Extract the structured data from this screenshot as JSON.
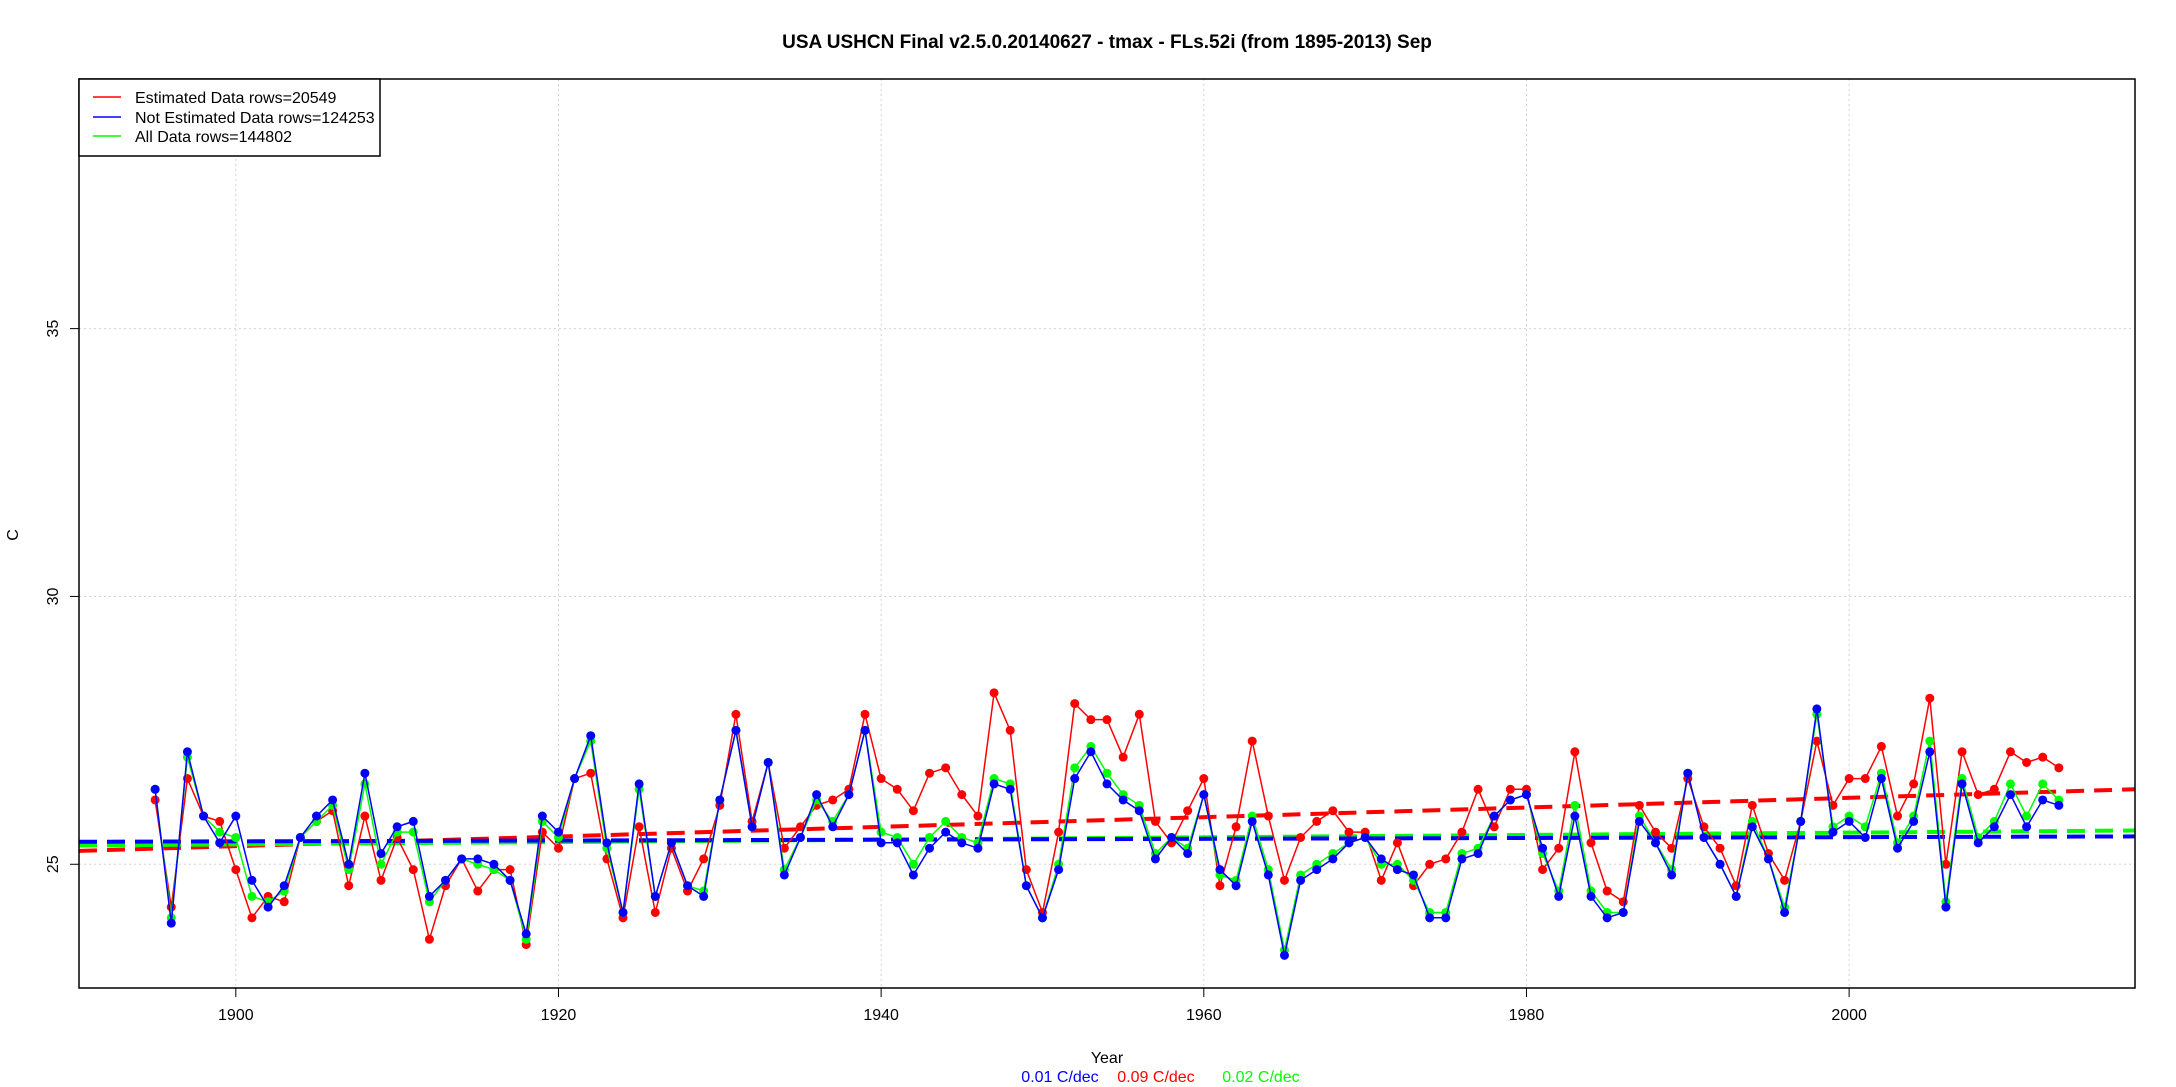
{
  "chart_data": {
    "type": "line",
    "title": "USA USHCN Final v2.5.0.20140627 - tmax - FLs.52i (from 1895-2013) Sep",
    "xlabel": "Year",
    "ylabel": "C",
    "xlim": [
      1890.28,
      2017.72
    ],
    "ylim": [
      22.69,
      39.66
    ],
    "x_ticks": [
      1900,
      1920,
      1940,
      1960,
      1980,
      2000
    ],
    "y_ticks": [
      25,
      30,
      35
    ],
    "grid": true,
    "legend_placement": "top-left",
    "x_start": 1895,
    "x_end": 2013,
    "series": [
      {
        "name": "Estimated Data rows=20549",
        "color": "#ff0000",
        "values": [
          26.2,
          24.2,
          26.6,
          25.9,
          25.8,
          24.9,
          24.0,
          24.4,
          24.3,
          25.5,
          25.8,
          26.0,
          24.6,
          25.9,
          24.7,
          25.5,
          24.9,
          23.6,
          24.6,
          25.1,
          24.5,
          24.9,
          24.9,
          23.5,
          25.6,
          25.3,
          26.6,
          26.7,
          25.1,
          24.0,
          25.7,
          24.1,
          25.3,
          24.5,
          25.1,
          26.1,
          27.8,
          25.8,
          26.9,
          25.3,
          25.7,
          26.1,
          26.2,
          26.4,
          27.8,
          26.6,
          26.4,
          26.0,
          26.7,
          26.8,
          26.3,
          25.9,
          28.2,
          27.5,
          24.9,
          24.1,
          25.6,
          28.0,
          27.7,
          27.7,
          27.0,
          27.8,
          25.8,
          25.4,
          26.0,
          26.6,
          24.6,
          25.7,
          27.3,
          25.9,
          24.7,
          25.5,
          25.8,
          26.0,
          25.6,
          25.6,
          24.7,
          25.4,
          24.6,
          25.0,
          25.1,
          25.6,
          26.4,
          25.7,
          26.4,
          26.4,
          24.9,
          25.3,
          27.1,
          25.4,
          24.5,
          24.3,
          26.1,
          25.6,
          25.3,
          26.6,
          25.7,
          25.3,
          24.6,
          26.1,
          25.2,
          24.7,
          25.8,
          27.3,
          26.1,
          26.6,
          26.6,
          27.2,
          25.9,
          26.5,
          28.1,
          25.0,
          27.1,
          26.3,
          26.4,
          27.1,
          26.9,
          27.0,
          26.8
        ],
        "trend": {
          "start": 25.25,
          "end": 26.4,
          "label": "0.09 C/dec"
        }
      },
      {
        "name": "Not Estimated Data rows=124253",
        "color": "#0000ff",
        "values": [
          26.4,
          23.9,
          27.1,
          25.9,
          25.4,
          25.9,
          24.7,
          24.2,
          24.6,
          25.5,
          25.9,
          26.2,
          25.0,
          26.7,
          25.2,
          25.7,
          25.8,
          24.4,
          24.7,
          25.1,
          25.1,
          25.0,
          24.7,
          23.7,
          25.9,
          25.6,
          26.6,
          27.4,
          25.4,
          24.1,
          26.5,
          24.4,
          25.4,
          24.6,
          24.4,
          26.2,
          27.5,
          25.7,
          26.9,
          24.8,
          25.5,
          26.3,
          25.7,
          26.3,
          27.5,
          25.4,
          25.4,
          24.8,
          25.3,
          25.6,
          25.4,
          25.3,
          26.5,
          26.4,
          24.6,
          24.0,
          24.9,
          26.6,
          27.1,
          26.5,
          26.2,
          26.0,
          25.1,
          25.5,
          25.2,
          26.3,
          24.9,
          24.6,
          25.8,
          24.8,
          23.3,
          24.7,
          24.9,
          25.1,
          25.4,
          25.5,
          25.1,
          24.9,
          24.8,
          24.0,
          24.0,
          25.1,
          25.2,
          25.9,
          26.2,
          26.3,
          25.3,
          24.4,
          25.9,
          24.4,
          24.0,
          24.1,
          25.8,
          25.4,
          24.8,
          26.7,
          25.5,
          25.0,
          24.4,
          25.7,
          25.1,
          24.1,
          25.8,
          27.9,
          25.6,
          25.8,
          25.5,
          26.6,
          25.3,
          25.8,
          27.1,
          24.2,
          26.5,
          25.4,
          25.7,
          26.3,
          25.7,
          26.2,
          26.1
        ],
        "trend": {
          "start": 25.42,
          "end": 25.52,
          "label": "0.01 C/dec"
        }
      },
      {
        "name": "All Data rows=144802",
        "color": "#00ff00",
        "values": [
          26.4,
          24.0,
          27.0,
          25.9,
          25.6,
          25.5,
          24.4,
          24.3,
          24.5,
          25.5,
          25.8,
          26.1,
          24.9,
          26.5,
          25.0,
          25.6,
          25.6,
          24.3,
          24.7,
          25.1,
          25.0,
          24.9,
          24.7,
          23.6,
          25.8,
          25.5,
          26.6,
          27.3,
          25.3,
          24.1,
          26.4,
          24.4,
          25.4,
          24.6,
          24.5,
          26.2,
          27.5,
          25.7,
          26.9,
          24.9,
          25.5,
          26.2,
          25.8,
          26.3,
          27.5,
          25.6,
          25.5,
          25.0,
          25.5,
          25.8,
          25.5,
          25.4,
          26.6,
          26.5,
          24.6,
          24.0,
          25.0,
          26.8,
          27.2,
          26.7,
          26.3,
          26.1,
          25.2,
          25.5,
          25.3,
          26.3,
          24.8,
          24.7,
          25.9,
          24.9,
          23.4,
          24.8,
          25.0,
          25.2,
          25.4,
          25.5,
          25.0,
          25.0,
          24.7,
          24.1,
          24.1,
          25.2,
          25.3,
          25.9,
          26.2,
          26.3,
          25.2,
          24.5,
          26.1,
          24.5,
          24.1,
          24.1,
          25.9,
          25.4,
          24.9,
          26.7,
          25.5,
          25.0,
          24.4,
          25.8,
          25.1,
          24.2,
          25.8,
          27.8,
          25.7,
          25.9,
          25.7,
          26.7,
          25.4,
          25.9,
          27.3,
          24.3,
          26.6,
          25.5,
          25.8,
          26.5,
          25.9,
          26.5,
          26.2
        ],
        "trend": {
          "start": 25.35,
          "end": 25.63,
          "label": "0.02 C/dec"
        }
      }
    ],
    "grid_color": "#d3d3d3"
  }
}
